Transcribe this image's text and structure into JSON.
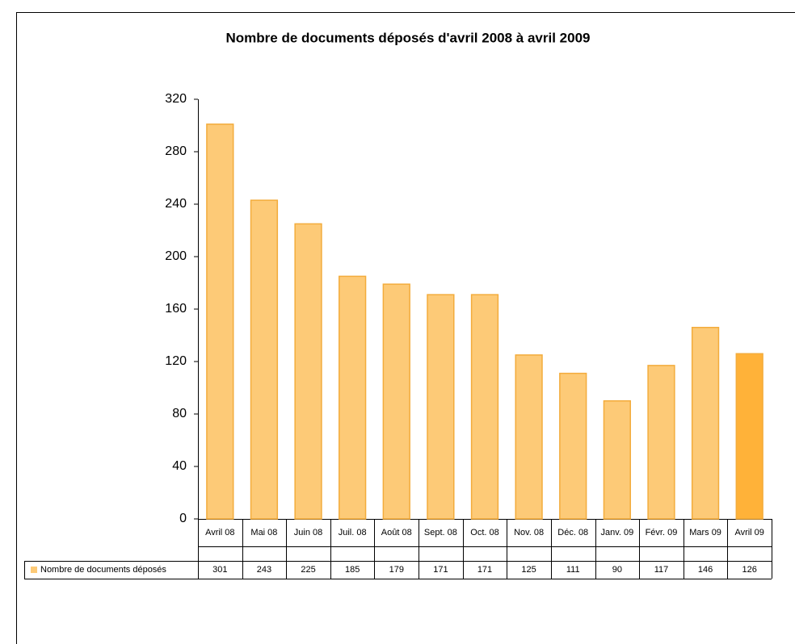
{
  "chart_data": {
    "type": "bar",
    "title": "Nombre de documents déposés d'avril 2008 à avril 2009",
    "categories": [
      "Avril 08",
      "Mai 08",
      "Juin 08",
      "Juil. 08",
      "Août 08",
      "Sept. 08",
      "Oct. 08",
      "Nov. 08",
      "Déc. 08",
      "Janv. 09",
      "Févr. 09",
      "Mars 09",
      "Avril 09"
    ],
    "series": [
      {
        "name": "Nombre de documents déposés",
        "color": "#fdca77",
        "colors": [
          "#fdca77",
          "#fdca77",
          "#fdca77",
          "#fdca77",
          "#fdca77",
          "#fdca77",
          "#fdca77",
          "#fdca77",
          "#fdca77",
          "#fdca77",
          "#fdca77",
          "#fdca77",
          "#ffb239"
        ],
        "values": [
          301,
          243,
          225,
          185,
          179,
          171,
          171,
          125,
          111,
          90,
          117,
          146,
          126
        ]
      }
    ],
    "ylim": [
      0,
      320
    ],
    "yticks": [
      0,
      40,
      80,
      120,
      160,
      200,
      240,
      280,
      320
    ],
    "grid": false,
    "data_table": true
  }
}
